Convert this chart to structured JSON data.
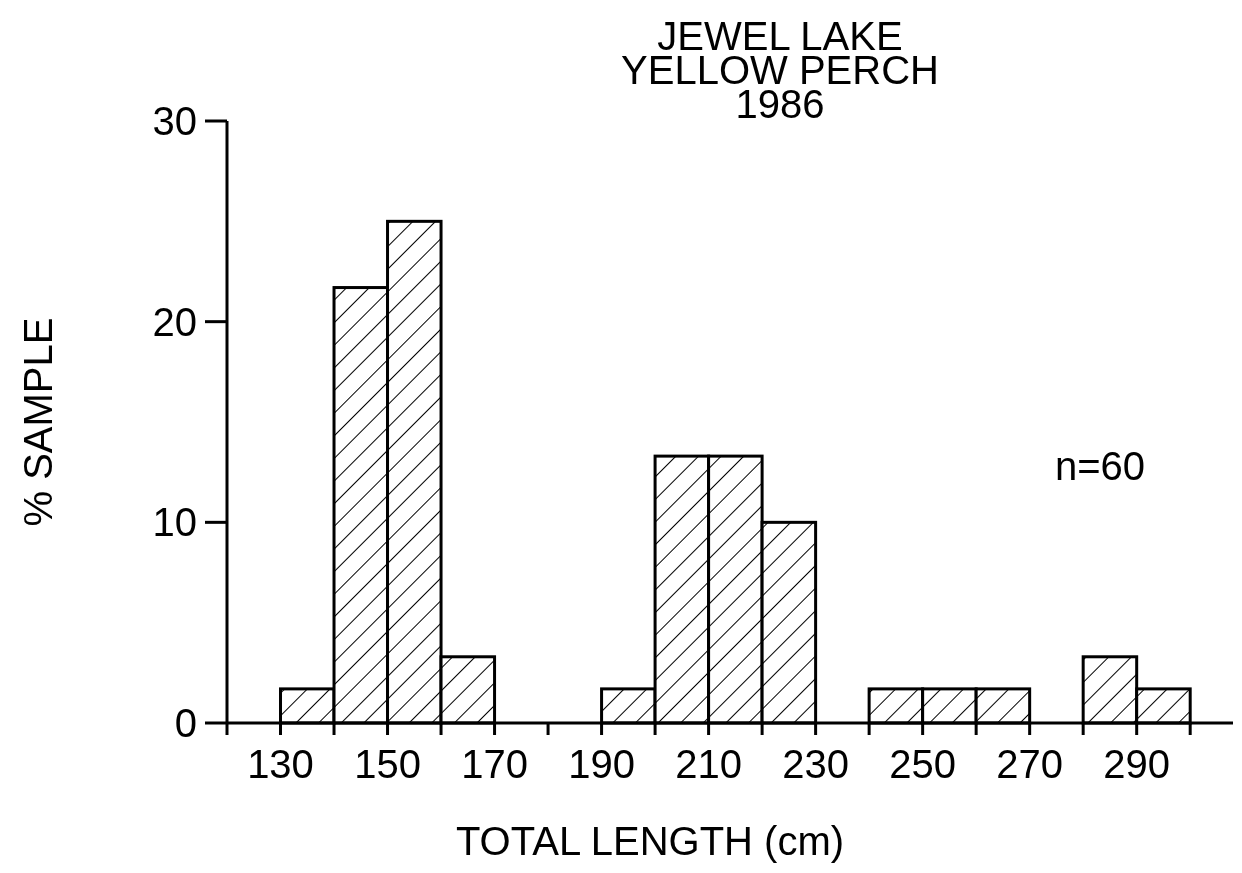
{
  "chart_data": {
    "type": "histogram",
    "title": "JEWEL LAKE\nYELLOW PERCH\n1986",
    "xlabel": "TOTAL LENGTH (cm)",
    "ylabel": "% SAMPLE",
    "bins": [
      130,
      140,
      150,
      160,
      170,
      180,
      190,
      200,
      210,
      220,
      230,
      240,
      250,
      260,
      270,
      280,
      290,
      300
    ],
    "values": [
      1.7,
      21.7,
      25,
      3.3,
      0,
      0,
      1.7,
      13.3,
      13.3,
      10,
      0,
      1.7,
      1.7,
      1.7,
      0,
      3.3,
      1.7
    ],
    "color": "#000000",
    "xlim": [
      120,
      308
    ],
    "xticks": [
      {
        "value": 120,
        "label": null
      },
      130,
      {
        "value": 140,
        "label": null
      },
      150,
      {
        "value": 160,
        "label": null
      },
      170,
      {
        "value": 180,
        "label": null
      },
      190,
      {
        "value": 200,
        "label": null
      },
      210,
      {
        "value": 220,
        "label": null
      },
      230,
      {
        "value": 240,
        "label": null
      },
      250,
      {
        "value": 260,
        "label": null
      },
      270,
      {
        "value": 280,
        "label": null
      },
      290,
      {
        "value": 300,
        "label": null
      }
    ],
    "ylim": [
      0,
      30
    ],
    "yticks": [
      0,
      10,
      20,
      30
    ],
    "annotations": [
      "n=60"
    ]
  }
}
